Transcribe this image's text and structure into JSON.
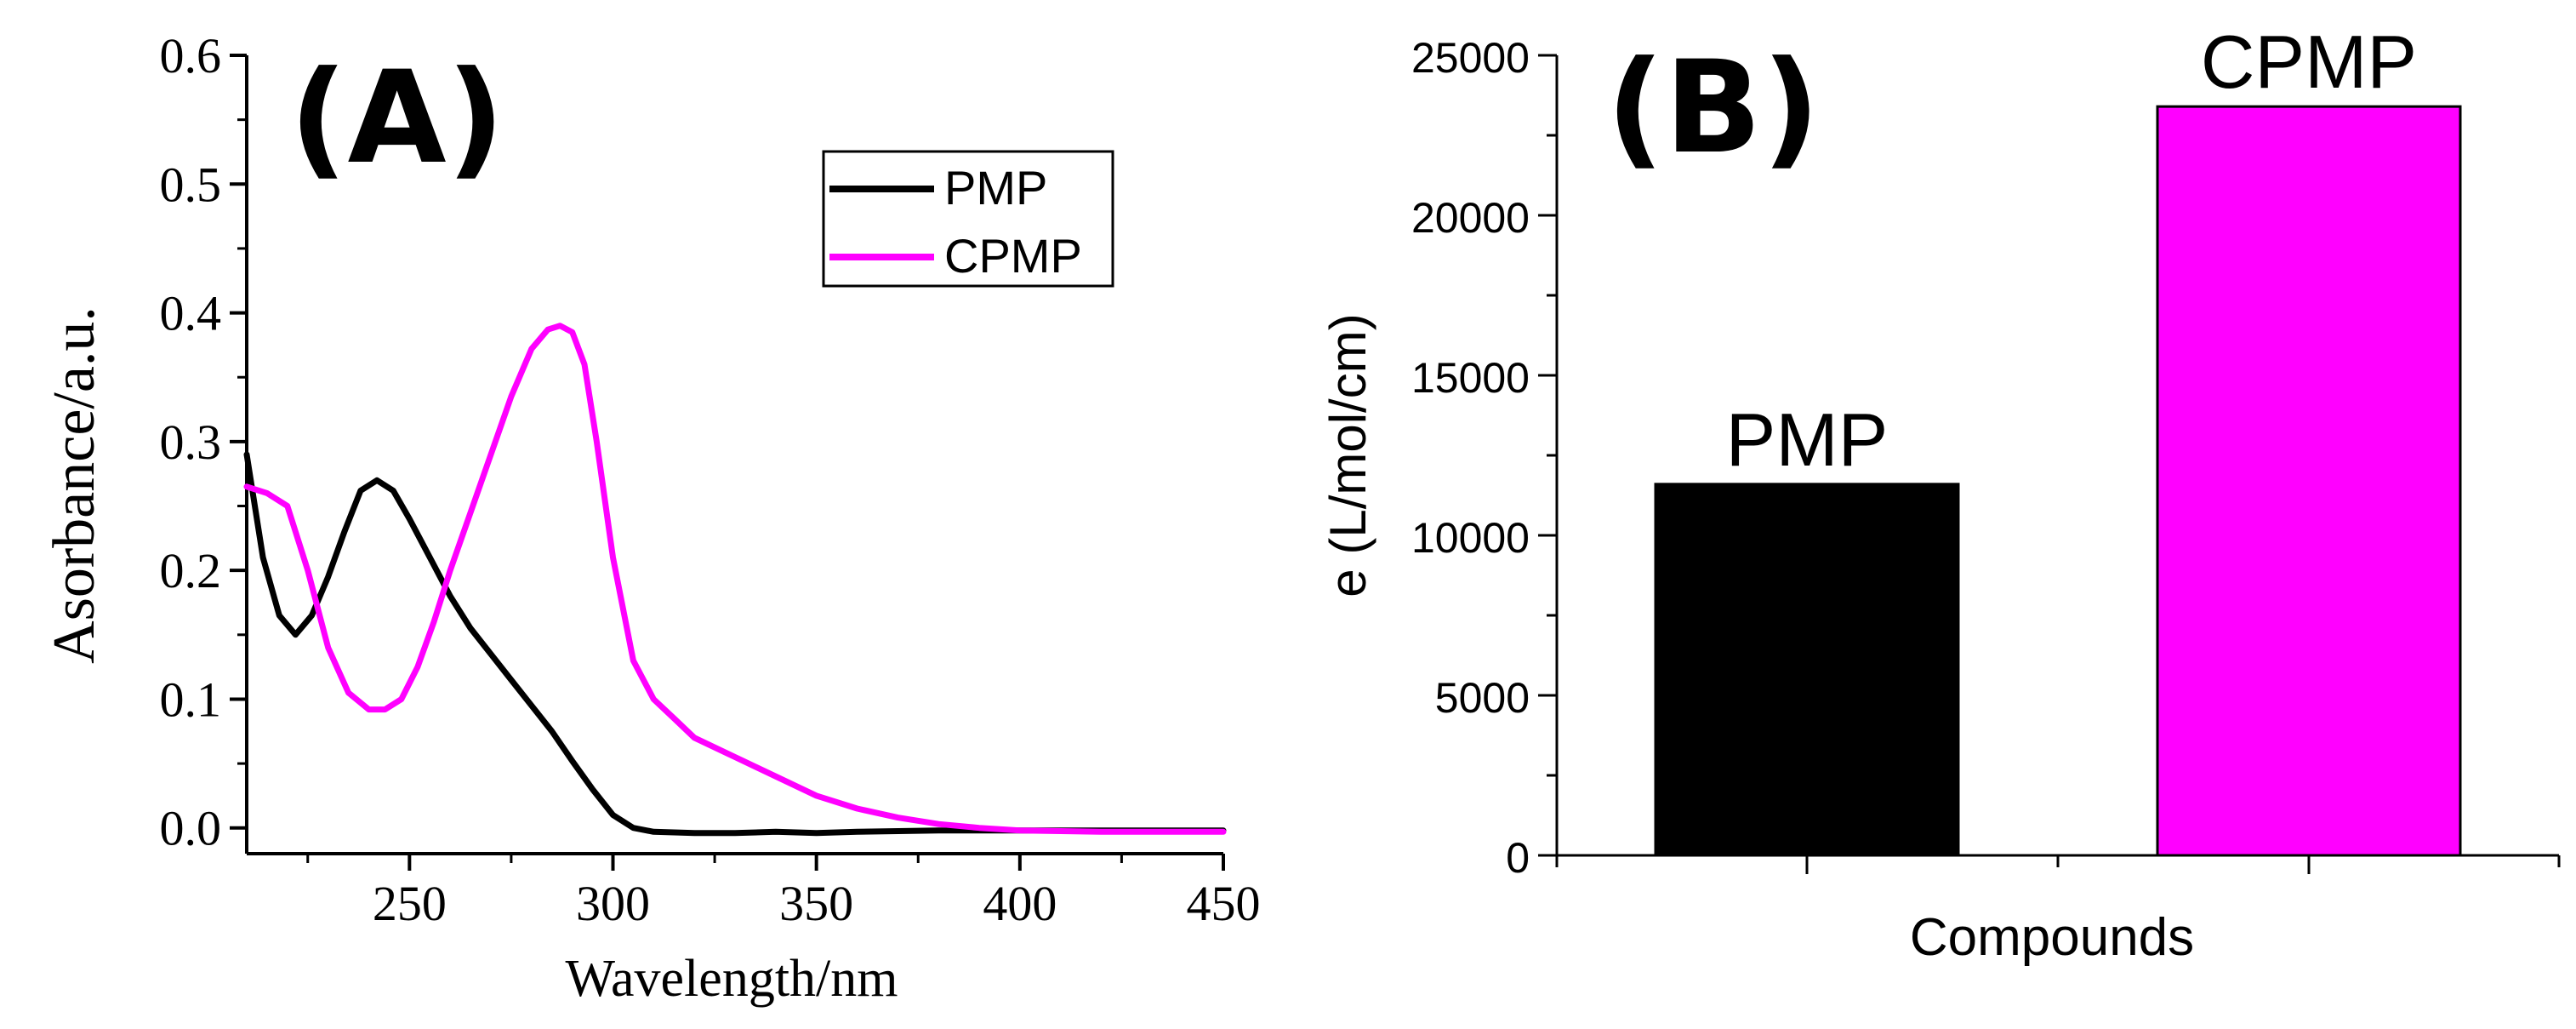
{
  "chart_data": [
    {
      "panel_label": "(A)",
      "type": "line",
      "xlabel": "Wavelength/nm",
      "ylabel": "Asorbance/a.u.",
      "xlim": [
        210,
        450
      ],
      "ylim": [
        -0.02,
        0.6
      ],
      "x_ticks": [
        "250",
        "300",
        "350",
        "400",
        "450"
      ],
      "y_ticks": [
        "0.0",
        "0.1",
        "0.2",
        "0.3",
        "0.4",
        "0.5",
        "0.6"
      ],
      "legend": "top-right",
      "series": [
        {
          "name": "PMP",
          "color": "#000000",
          "x": [
            210,
            214,
            218,
            222,
            226,
            230,
            234,
            238,
            242,
            246,
            250,
            255,
            260,
            265,
            270,
            275,
            280,
            285,
            290,
            295,
            300,
            305,
            310,
            320,
            330,
            340,
            350,
            360,
            380,
            400,
            420,
            450
          ],
          "y": [
            0.29,
            0.21,
            0.165,
            0.15,
            0.165,
            0.195,
            0.23,
            0.262,
            0.27,
            0.262,
            0.24,
            0.21,
            0.18,
            0.155,
            0.135,
            0.115,
            0.095,
            0.075,
            0.052,
            0.03,
            0.01,
            0.0,
            -0.003,
            -0.004,
            -0.004,
            -0.003,
            -0.004,
            -0.003,
            -0.002,
            -0.002,
            -0.002,
            -0.002
          ]
        },
        {
          "name": "CPMP",
          "color": "#ff00ff",
          "x": [
            210,
            215,
            220,
            225,
            230,
            235,
            240,
            244,
            248,
            252,
            256,
            260,
            265,
            270,
            275,
            280,
            284,
            287,
            290,
            293,
            296,
            300,
            305,
            310,
            315,
            320,
            330,
            340,
            350,
            360,
            370,
            380,
            390,
            400,
            420,
            450
          ],
          "y": [
            0.265,
            0.26,
            0.25,
            0.2,
            0.14,
            0.105,
            0.092,
            0.092,
            0.1,
            0.125,
            0.16,
            0.2,
            0.245,
            0.29,
            0.335,
            0.372,
            0.387,
            0.39,
            0.385,
            0.36,
            0.3,
            0.21,
            0.13,
            0.1,
            0.085,
            0.07,
            0.055,
            0.04,
            0.025,
            0.015,
            0.008,
            0.003,
            0.0,
            -0.002,
            -0.003,
            -0.003
          ]
        }
      ]
    },
    {
      "panel_label": "(B)",
      "type": "bar",
      "xlabel": "Compounds",
      "ylabel": "e  (L/mol/cm)",
      "ylim": [
        0,
        25000
      ],
      "y_ticks": [
        "0",
        "5000",
        "10000",
        "15000",
        "20000",
        "25000"
      ],
      "categories": [
        "PMP",
        "CPMP"
      ],
      "values": [
        11600,
        23400
      ],
      "colors": [
        "#000000",
        "#ff00ff"
      ],
      "data_labels": [
        "PMP",
        "CPMP"
      ]
    }
  ]
}
